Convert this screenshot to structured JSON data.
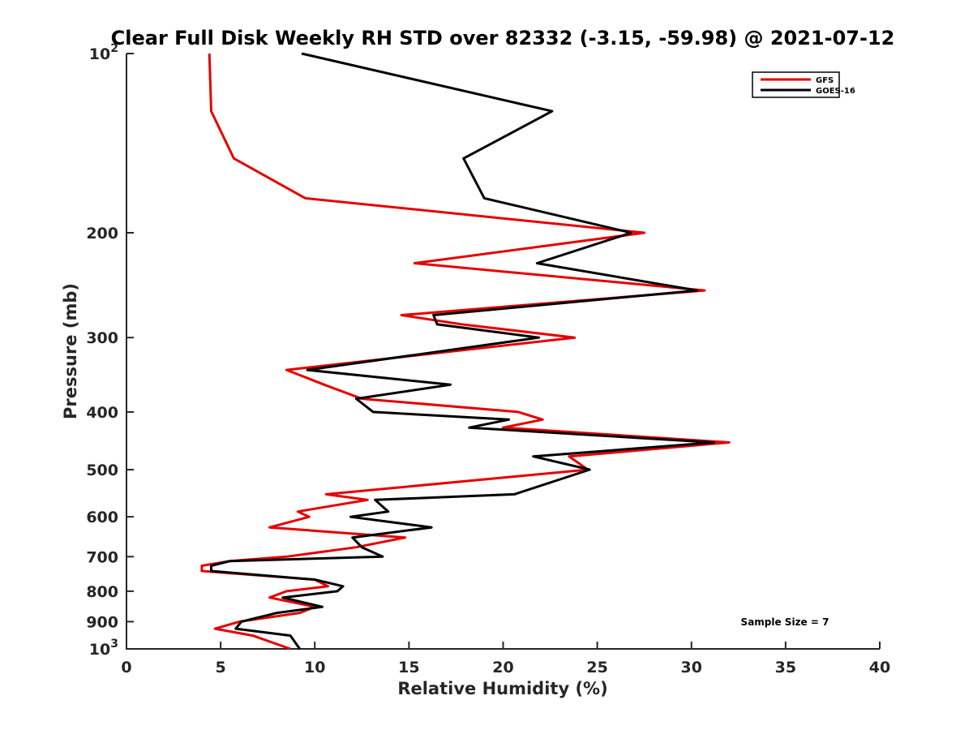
{
  "chart_data": {
    "type": "line",
    "title": "Clear Full Disk Weekly RH STD over 82332 (-3.15, -59.98) @ 2021-07-12",
    "xlabel": "Relative Humidity (%)",
    "ylabel": "Pressure (mb)",
    "xlim": [
      0,
      40
    ],
    "ylim": [
      100,
      1000
    ],
    "y_scale": "log",
    "y_reversed": true,
    "grid": false,
    "legend_position": "top-right",
    "annotation": "Sample Size = 7",
    "x_ticks": [
      "0",
      "5",
      "10",
      "15",
      "20",
      "25",
      "30",
      "35",
      "40"
    ],
    "y_ticks": [
      {
        "value": 100,
        "base": "10",
        "exp": "2"
      },
      {
        "value": 200,
        "label": "200"
      },
      {
        "value": 300,
        "label": "300"
      },
      {
        "value": 400,
        "label": "400"
      },
      {
        "value": 500,
        "label": "500"
      },
      {
        "value": 600,
        "label": "600"
      },
      {
        "value": 700,
        "label": "700"
      },
      {
        "value": 800,
        "label": "800"
      },
      {
        "value": 900,
        "label": "900"
      },
      {
        "value": 1000,
        "base": "10",
        "exp": "3"
      }
    ],
    "series": [
      {
        "name": "GFS",
        "color": "#e60000",
        "points": [
          [
            4.4,
            100
          ],
          [
            4.5,
            125
          ],
          [
            5.7,
            150
          ],
          [
            9.5,
            175
          ],
          [
            27.5,
            200
          ],
          [
            15.3,
            225
          ],
          [
            30.7,
            250
          ],
          [
            14.6,
            275
          ],
          [
            17.8,
            285
          ],
          [
            23.8,
            300
          ],
          [
            8.5,
            340
          ],
          [
            10.5,
            360
          ],
          [
            12.5,
            380
          ],
          [
            20.8,
            400
          ],
          [
            22.1,
            412
          ],
          [
            20.0,
            425
          ],
          [
            32.0,
            450
          ],
          [
            23.5,
            475
          ],
          [
            24.5,
            500
          ],
          [
            10.6,
            550
          ],
          [
            12.8,
            562
          ],
          [
            9.1,
            588
          ],
          [
            9.7,
            600
          ],
          [
            7.6,
            625
          ],
          [
            14.8,
            650
          ],
          [
            12.2,
            675
          ],
          [
            8.5,
            700
          ],
          [
            5.5,
            712
          ],
          [
            4.0,
            725
          ],
          [
            4.0,
            740
          ],
          [
            10.0,
            765
          ],
          [
            10.7,
            785
          ],
          [
            8.5,
            800
          ],
          [
            7.6,
            820
          ],
          [
            10.0,
            850
          ],
          [
            9.2,
            870
          ],
          [
            6.0,
            900
          ],
          [
            4.7,
            925
          ],
          [
            6.7,
            950
          ],
          [
            8.7,
            1000
          ]
        ]
      },
      {
        "name": "GOES-16",
        "color": "#000000",
        "points": [
          [
            9.3,
            100
          ],
          [
            22.6,
            125
          ],
          [
            17.9,
            150
          ],
          [
            19.0,
            175
          ],
          [
            26.8,
            200
          ],
          [
            21.8,
            225
          ],
          [
            30.3,
            250
          ],
          [
            16.3,
            275
          ],
          [
            16.5,
            285
          ],
          [
            21.9,
            300
          ],
          [
            9.6,
            340
          ],
          [
            17.2,
            360
          ],
          [
            12.2,
            380
          ],
          [
            13.1,
            400
          ],
          [
            20.3,
            412
          ],
          [
            18.2,
            425
          ],
          [
            31.2,
            450
          ],
          [
            21.6,
            475
          ],
          [
            24.6,
            500
          ],
          [
            20.6,
            550
          ],
          [
            13.2,
            562
          ],
          [
            13.9,
            588
          ],
          [
            11.9,
            600
          ],
          [
            16.2,
            625
          ],
          [
            12.0,
            650
          ],
          [
            12.5,
            675
          ],
          [
            13.6,
            700
          ],
          [
            5.5,
            712
          ],
          [
            4.5,
            725
          ],
          [
            4.5,
            740
          ],
          [
            10.0,
            765
          ],
          [
            11.5,
            785
          ],
          [
            11.2,
            800
          ],
          [
            8.3,
            820
          ],
          [
            10.4,
            850
          ],
          [
            8.0,
            870
          ],
          [
            6.1,
            900
          ],
          [
            5.8,
            925
          ],
          [
            8.7,
            950
          ],
          [
            9.2,
            1000
          ]
        ]
      }
    ]
  }
}
